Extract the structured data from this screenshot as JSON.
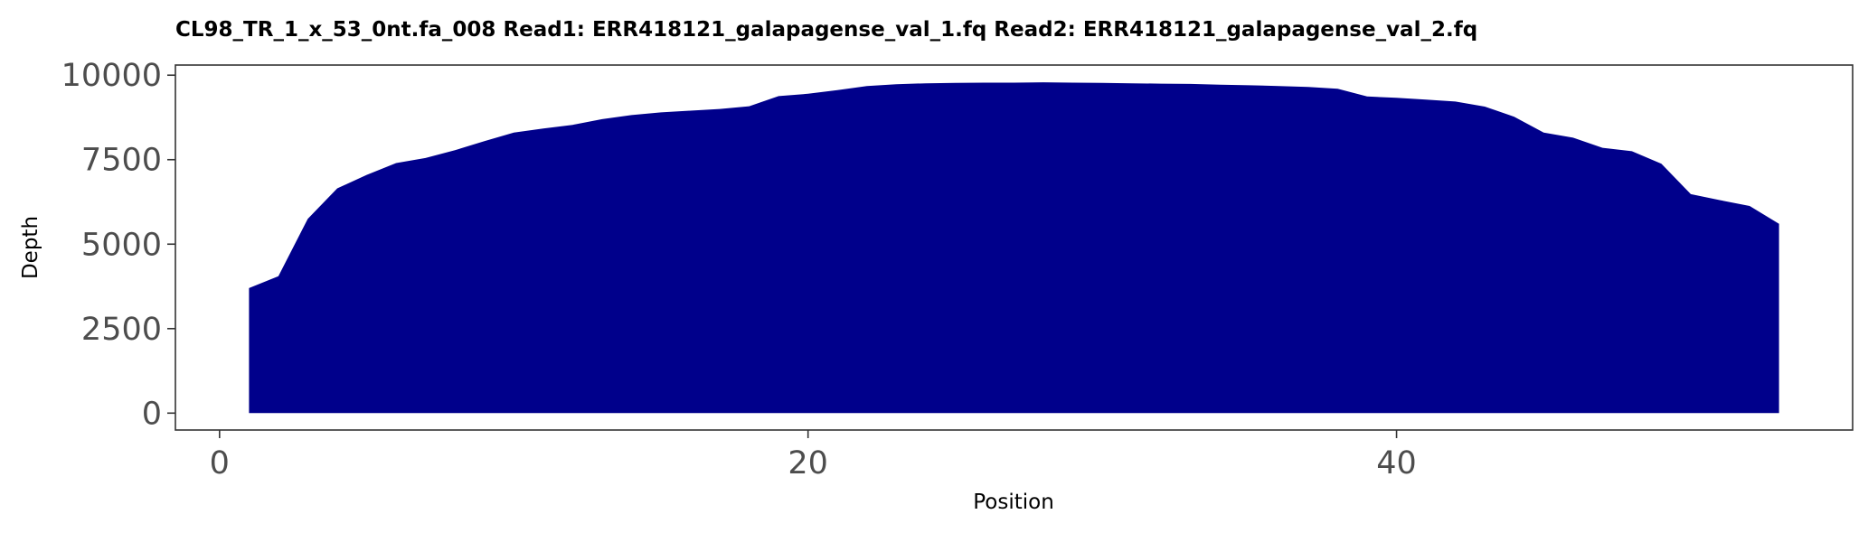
{
  "chart_data": {
    "type": "area",
    "title": "CL98_TR_1_x_53_0nt.fa_008   Read1: ERR418121_galapagense_val_1.fq   Read2: ERR418121_galapagense_val_2.fq",
    "xlabel": "Position",
    "ylabel": "Depth",
    "xlim": [
      -1.5,
      55.5
    ],
    "ylim": [
      -500,
      10300
    ],
    "x_ticks": [
      0,
      20,
      40
    ],
    "x_tick_labels": [
      "0",
      "20",
      "40"
    ],
    "y_ticks": [
      0,
      2500,
      5000,
      7500,
      10000
    ],
    "y_tick_labels": [
      "0",
      "2500",
      "5000",
      "7500",
      "10000"
    ],
    "grid": false,
    "fill_color": "#00008B",
    "series": [
      {
        "x": [
          1,
          2,
          3,
          4,
          5,
          6,
          7,
          8,
          9,
          10,
          11,
          12,
          13,
          14,
          15,
          16,
          17,
          18,
          19,
          20,
          21,
          22,
          23,
          24,
          25,
          26,
          27,
          28,
          29,
          30,
          31,
          32,
          33,
          34,
          35,
          36,
          37,
          38,
          39,
          40,
          41,
          42,
          43,
          44,
          45,
          46,
          47,
          48,
          49,
          50,
          51,
          52,
          53
        ],
        "values": [
          3700,
          4050,
          5750,
          6650,
          7050,
          7400,
          7550,
          7780,
          8050,
          8300,
          8420,
          8530,
          8700,
          8820,
          8900,
          8950,
          9000,
          9080,
          9380,
          9450,
          9560,
          9680,
          9730,
          9760,
          9770,
          9780,
          9780,
          9790,
          9780,
          9770,
          9760,
          9750,
          9740,
          9720,
          9700,
          9680,
          9650,
          9600,
          9370,
          9330,
          9280,
          9220,
          9070,
          8770,
          8300,
          8150,
          7850,
          7750,
          7380,
          6480,
          6300,
          6130,
          5600
        ]
      }
    ]
  }
}
